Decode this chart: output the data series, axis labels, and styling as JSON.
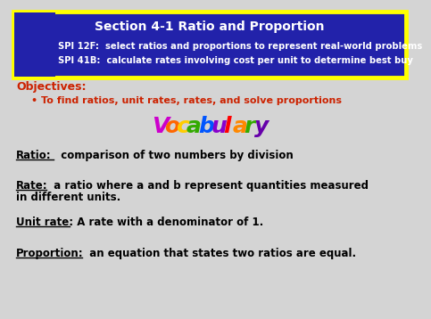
{
  "bg_color": "#d4d4d4",
  "header_bg": "#2222aa",
  "header_border": "#ffff00",
  "header_title": "Section 4-1 Ratio and Proportion",
  "header_spi1": "SPI 12F:  select ratios and proportions to represent real-world problems",
  "header_spi2": "SPI 41B:  calculate rates involving cost per unit to determine best buy",
  "objectives_label": "Objectives:",
  "objectives_color": "#cc2200",
  "objectives_text": "• To find ratios, unit rates, rates, and solve proportions",
  "vocab_letters": [
    "V",
    "o",
    "c",
    "a",
    "b",
    "u",
    "l",
    "a",
    "r",
    "y"
  ],
  "vocab_letter_colors": [
    "#cc00cc",
    "#ff6600",
    "#ffcc00",
    "#33aa00",
    "#0055ff",
    "#8800cc",
    "#ff0000",
    "#ff8800",
    "#33aa00",
    "#6600aa"
  ],
  "definitions": [
    {
      "term": "Ratio:",
      "rest": "  comparison of two numbers by division",
      "tw": 42
    },
    {
      "term": "Rate:",
      "rest": "  a ratio where a and b represent quantities measured",
      "line2": "in different units.",
      "tw": 34
    },
    {
      "term": "Unit rate:",
      "rest": "  A rate with a denominator of 1.",
      "tw": 60
    },
    {
      "term": "Proportion:",
      "rest": "  an equation that states two ratios are equal.",
      "tw": 74
    }
  ],
  "text_color": "#000000"
}
